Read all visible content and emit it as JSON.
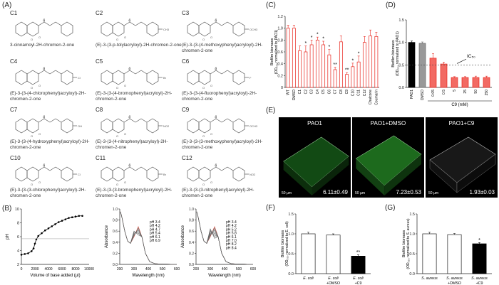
{
  "panels": {
    "a": "(A)",
    "b": "(B)",
    "c": "(C)",
    "d": "(D)",
    "e": "(E)",
    "f": "(F)",
    "g": "(G)"
  },
  "compounds": [
    {
      "code": "C1",
      "name": "3-cinnamoyl-2H-chromen-2-one",
      "sub": "none"
    },
    {
      "code": "C2",
      "name": "(E)-3-(3-p-tolylacryloyl)-2H-chromen-2-one",
      "sub": "CH3"
    },
    {
      "code": "C3",
      "name": "(E)-3-(3-(4-methoxyphenyl)acryloyl)-2H-chromen-2-one",
      "sub": "OCH3"
    },
    {
      "code": "C4",
      "name": "(E)-3-(3-(4-chlorophenyl)acryloyl)-2H-chromen-2-one",
      "sub": "Cl"
    },
    {
      "code": "C5",
      "name": "(E)-3-(3-(4-bromophenyl)acryloyl)-2H-chromen-2-one",
      "sub": "Br"
    },
    {
      "code": "C6",
      "name": "(E)-3-(3-(4-fluorophenyl)acryloyl)-2H-chromen-2-one",
      "sub": "F"
    },
    {
      "code": "C7",
      "name": "(E)-3-(3-(4-hydroxyphenyl)acryloyl)-2H-chromen-2-one",
      "sub": "OH"
    },
    {
      "code": "C8",
      "name": "(E)-3-(3-(4-nitrophenyl)acryloyl)-2H-chromen-2-one",
      "sub": "NO2"
    },
    {
      "code": "C9",
      "name": "(E)-3-(3-(3-methoxyphenyl)acryloyl)-2H-chromen-2-one",
      "sub": "OCH3"
    },
    {
      "code": "C10",
      "name": "(E)-3-(3-(3-chlorophenyl)acryloyl)-2H-chromen-2-one",
      "sub": "Cl"
    },
    {
      "code": "C11",
      "name": "(E)-3-(3-(3-bromophenyl)acryloyl)-2H-chromen-2-one",
      "sub": "Br"
    },
    {
      "code": "C12",
      "name": "(E)-3-(3-(3-nitrophenyl)acryloyl)-2H-chromen-2-one",
      "sub": "NO2"
    }
  ],
  "microscopy": [
    {
      "title": "PAO1",
      "value": "6.11±0.49",
      "scale": "50 µm"
    },
    {
      "title": "PAO1+DMSO",
      "value": "7.23±0.53",
      "scale": "50 µm"
    },
    {
      "title": "PAO1+C9",
      "value": "1.93±0.03",
      "scale": "50 µm"
    }
  ],
  "colors": {
    "accent": "#e8241c",
    "dark": "#000000",
    "grid": "#888888",
    "green": "#2a9a2a"
  },
  "chart_data": [
    {
      "id": "B1",
      "type": "line",
      "xlabel": "Volume of base added (µl)",
      "ylabel": "pH",
      "xticks": [
        "0",
        "2000",
        "4000",
        "6000",
        "8000",
        "10000"
      ],
      "yticks": [
        "2",
        "4",
        "6",
        "8",
        "10"
      ],
      "xlim": [
        0,
        10000
      ],
      "ylim": [
        2,
        10
      ],
      "x": [
        0,
        500,
        1000,
        1500,
        1800,
        2000,
        2200,
        2500,
        3000,
        3500,
        4000,
        4500,
        5000,
        5500,
        6000,
        6500,
        7000,
        7500,
        8000,
        8500,
        9000
      ],
      "y": [
        3.4,
        3.5,
        3.6,
        3.9,
        4.3,
        5.0,
        5.6,
        6.1,
        6.5,
        6.9,
        7.2,
        7.5,
        7.8,
        8.1,
        8.3,
        8.5,
        8.7,
        8.8,
        8.9,
        9.0,
        9.0
      ]
    },
    {
      "id": "B2",
      "type": "line",
      "xlabel": "Wavelength (nm)",
      "ylabel": "Absorbance",
      "xticks": [
        "200",
        "300",
        "400",
        "500",
        "600"
      ],
      "yticks": [
        "0.0",
        "0.2",
        "0.4",
        "0.6",
        "0.8",
        "1.0"
      ],
      "xlim": [
        200,
        600
      ],
      "ylim": [
        0,
        1
      ],
      "labels": [
        "pH 3.4",
        "pH 4.2",
        "pH 4.7",
        "pH 5.4",
        "pH 6.1",
        "pH 6.9"
      ]
    },
    {
      "id": "B3",
      "type": "line",
      "xlabel": "Wavelength (nm)",
      "ylabel": "Absorbance",
      "xticks": [
        "200",
        "300",
        "400",
        "500",
        "600"
      ],
      "yticks": [
        "0.0",
        "0.2",
        "0.4",
        "0.6",
        "0.8",
        "1.0"
      ],
      "xlim": [
        200,
        600
      ],
      "ylim": [
        0,
        1
      ],
      "labels": [
        "pH 3.4",
        "pH 4.2",
        "pH 5.2",
        "pH 5.8",
        "pH 6.1",
        "pH 7.0",
        "pH 8.2",
        "pH 8.4"
      ]
    },
    {
      "id": "C",
      "type": "bar",
      "ylabel": "Biofilm biomass",
      "ylabel2": "(OD₅₅₀ normalized to PAO1)",
      "yticks": [
        "0",
        "0.2",
        "0.4",
        "0.6",
        "0.8",
        "1.0",
        "1.2"
      ],
      "ylim": [
        0,
        1.2
      ],
      "categories": [
        "WT",
        "DMSO",
        "C1",
        "C2",
        "C3",
        "C4",
        "C5",
        "C6",
        "C7",
        "C8",
        "C9",
        "C10",
        "C11",
        "C12",
        "Chalcone",
        "Coumarin"
      ],
      "values": [
        1.0,
        1.0,
        0.62,
        0.6,
        0.72,
        0.8,
        0.72,
        0.55,
        0.3,
        0.77,
        0.22,
        0.35,
        0.43,
        0.76,
        0.87,
        0.86
      ],
      "errors": [
        0.05,
        0.05,
        0.08,
        0.1,
        0.08,
        0.05,
        0.06,
        0.09,
        0.04,
        0.1,
        0.03,
        0.06,
        0.1,
        0.1,
        0.1,
        0.07
      ],
      "stars": [
        "",
        "",
        "",
        "*",
        "*",
        "*",
        "*",
        "*",
        "**",
        "",
        "**",
        "*",
        "*",
        "",
        "",
        ""
      ]
    },
    {
      "id": "D",
      "type": "bar",
      "ylabel": "Biofilm biomass",
      "ylabel2": "(OD₅₅₀ normalized to PAO1)",
      "yticks": [
        "0.0",
        "0.5",
        "1.0",
        "1.5"
      ],
      "ylim": [
        0,
        1.5
      ],
      "categories": [
        "PAO1",
        "DMSO",
        "0.05",
        "0.5",
        "5",
        "25",
        "50",
        "250"
      ],
      "values": [
        1.0,
        0.98,
        0.65,
        0.52,
        0.22,
        0.22,
        0.22,
        0.22
      ],
      "errors": [
        0.03,
        0.03,
        0.1,
        0.04,
        0.02,
        0.02,
        0.03,
        0.03
      ],
      "group_label": "C9 (mM)",
      "annotation": "IC₅₀",
      "ref_line": 0.5
    },
    {
      "id": "F",
      "type": "bar",
      "ylabel": "Biofilm biomass",
      "ylabel2": "(OD₅₅₀ normalized to E. coli)",
      "yticks": [
        "0.0",
        "0.5",
        "1.0",
        "1.5"
      ],
      "ylim": [
        0,
        1.5
      ],
      "categories": [
        "E. coli",
        "E. coli +DMSO",
        "E. coli +C9"
      ],
      "values": [
        1.0,
        0.97,
        0.44
      ],
      "errors": [
        0.04,
        0.03,
        0.03
      ],
      "stars": [
        "",
        "",
        "**"
      ]
    },
    {
      "id": "G",
      "type": "bar",
      "ylabel": "Biofilm biomass",
      "ylabel2": "(OD₅₅₀ normalized to S. aureus)",
      "yticks": [
        "0.0",
        "0.5",
        "1.0",
        "1.5"
      ],
      "ylim": [
        0,
        1.5
      ],
      "categories": [
        "S. aureus",
        "S. aureus +DMSO",
        "S. aureus +C9"
      ],
      "values": [
        1.0,
        0.98,
        0.75
      ],
      "errors": [
        0.04,
        0.03,
        0.03
      ],
      "stars": [
        "",
        "",
        "*"
      ]
    }
  ]
}
